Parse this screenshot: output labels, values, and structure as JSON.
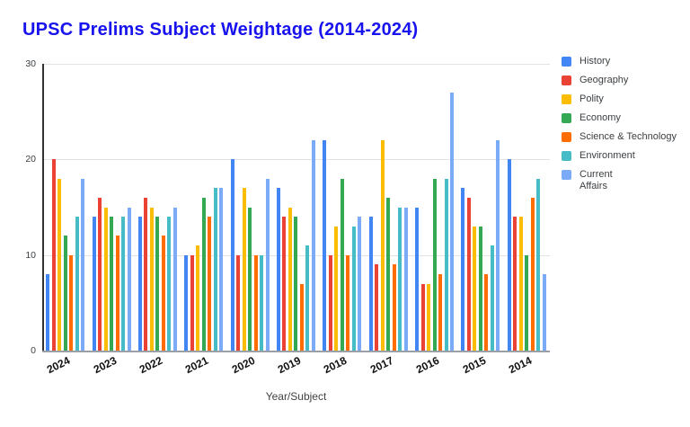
{
  "title": "UPSC Prelims Subject Weightage (2014-2024)",
  "title_color": "#1813EE",
  "chart_data": {
    "type": "bar",
    "title": "UPSC Prelims Subject Weightage (2014-2024)",
    "xlabel": "Year/Subject",
    "ylabel": "",
    "ylim": [
      0,
      30
    ],
    "yticks": [
      0,
      10,
      20,
      30
    ],
    "grid": true,
    "legend_position": "right",
    "categories": [
      "2024",
      "2023",
      "2022",
      "2021",
      "2020",
      "2019",
      "2018",
      "2017",
      "2016",
      "2015",
      "2014"
    ],
    "series": [
      {
        "name": "History",
        "legend_label": "History",
        "color": "#4285F4",
        "values": [
          8,
          14,
          14,
          10,
          20,
          17,
          22,
          14,
          15,
          17,
          20
        ]
      },
      {
        "name": "Geography",
        "legend_label": "Geography",
        "color": "#EA4335",
        "values": [
          20,
          16,
          16,
          10,
          10,
          14,
          10,
          9,
          7,
          16,
          14
        ]
      },
      {
        "name": "Polity",
        "legend_label": "Polity",
        "color": "#FBBC04",
        "values": [
          18,
          15,
          15,
          11,
          17,
          15,
          13,
          22,
          7,
          13,
          14
        ]
      },
      {
        "name": "Economy",
        "legend_label": "Economy",
        "color": "#34A853",
        "values": [
          12,
          14,
          14,
          16,
          15,
          14,
          18,
          16,
          18,
          13,
          10
        ]
      },
      {
        "name": "Science & Technology",
        "legend_label": "Science & Technology",
        "color": "#FF6D01",
        "values": [
          10,
          12,
          12,
          14,
          10,
          7,
          10,
          9,
          8,
          8,
          16
        ]
      },
      {
        "name": "Environment",
        "legend_label": "Environment",
        "color": "#46BDC6",
        "values": [
          14,
          14,
          14,
          17,
          10,
          11,
          13,
          15,
          18,
          11,
          18
        ]
      },
      {
        "name": "Current Affairs",
        "legend_label": "Current\nAffairs",
        "color": "#7BAAF7",
        "values": [
          18,
          15,
          15,
          17,
          18,
          22,
          14,
          15,
          27,
          22,
          8
        ]
      }
    ],
    "axis_colors": {
      "gridline": "#e3e3e3",
      "baseline": "#9aa0a6",
      "y_axis_line": "#333333",
      "tick_label": "#3c4043",
      "x_tick_label": "#111111"
    }
  }
}
